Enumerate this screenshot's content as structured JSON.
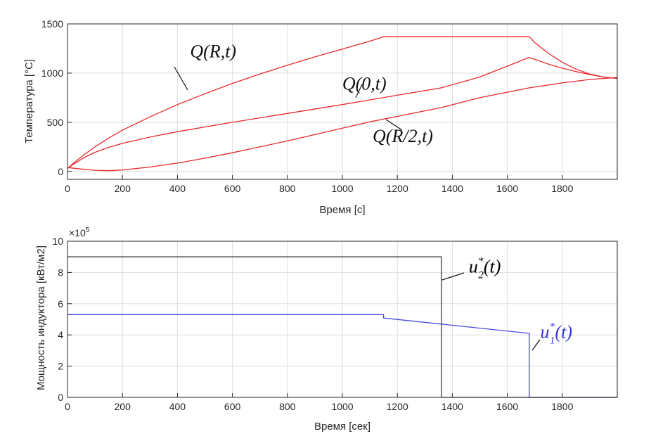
{
  "chart_data": [
    {
      "type": "line",
      "title": "",
      "xlabel": "Время [с]",
      "ylabel": "Температура [°C]",
      "xlim": [
        0,
        2000
      ],
      "ylim": [
        -80,
        1500
      ],
      "xticks": [
        0,
        200,
        400,
        600,
        800,
        1000,
        1200,
        1400,
        1600,
        1800
      ],
      "yticks": [
        0,
        500,
        1000,
        1500
      ],
      "grid": true,
      "series": [
        {
          "color": "#e8282c",
          "points": [
            [
              0,
              30
            ],
            [
              20,
              80
            ],
            [
              60,
              170
            ],
            [
              100,
              250
            ],
            [
              150,
              340
            ],
            [
              200,
              420
            ],
            [
              300,
              555
            ],
            [
              400,
              680
            ],
            [
              500,
              790
            ],
            [
              600,
              895
            ],
            [
              700,
              990
            ],
            [
              800,
              1080
            ],
            [
              900,
              1165
            ],
            [
              1000,
              1245
            ],
            [
              1100,
              1325
            ],
            [
              1150,
              1370
            ],
            [
              1360,
              1370
            ],
            [
              1680,
              1370
            ],
            [
              1700,
              1310
            ],
            [
              1750,
              1200
            ],
            [
              1800,
              1110
            ],
            [
              1850,
              1040
            ],
            [
              1900,
              990
            ],
            [
              1950,
              960
            ],
            [
              2000,
              945
            ]
          ]
        },
        {
          "color": "#e8282c",
          "points": [
            [
              0,
              30
            ],
            [
              20,
              70
            ],
            [
              60,
              140
            ],
            [
              100,
              195
            ],
            [
              150,
              245
            ],
            [
              200,
              285
            ],
            [
              300,
              350
            ],
            [
              400,
              405
            ],
            [
              600,
              500
            ],
            [
              800,
              590
            ],
            [
              1000,
              680
            ],
            [
              1200,
              775
            ],
            [
              1360,
              850
            ],
            [
              1500,
              960
            ],
            [
              1680,
              1160
            ],
            [
              1750,
              1090
            ],
            [
              1800,
              1050
            ],
            [
              1850,
              1015
            ],
            [
              1900,
              985
            ],
            [
              1950,
              960
            ],
            [
              2000,
              945
            ]
          ]
        },
        {
          "color": "#e8282c",
          "points": [
            [
              0,
              40
            ],
            [
              50,
              25
            ],
            [
              100,
              12
            ],
            [
              150,
              8
            ],
            [
              200,
              15
            ],
            [
              300,
              45
            ],
            [
              400,
              85
            ],
            [
              500,
              135
            ],
            [
              600,
              190
            ],
            [
              700,
              250
            ],
            [
              800,
              310
            ],
            [
              900,
              375
            ],
            [
              1000,
              440
            ],
            [
              1100,
              505
            ],
            [
              1200,
              560
            ],
            [
              1360,
              650
            ],
            [
              1500,
              750
            ],
            [
              1680,
              850
            ],
            [
              1800,
              900
            ],
            [
              1900,
              935
            ],
            [
              2000,
              955
            ]
          ]
        }
      ],
      "annotations": [
        {
          "text": "Q(R,t)",
          "x": 530,
          "y": 1160
        },
        {
          "text": "Q(0,t)",
          "x": 1080,
          "y": 830
        },
        {
          "text": "Q(R/2,t)",
          "x": 1220,
          "y": 300
        }
      ]
    },
    {
      "type": "line",
      "title": "",
      "xlabel": "Время [сек]",
      "ylabel": "Мощность индуктора [кВт/м2]",
      "xlim": [
        0,
        2000
      ],
      "ylim": [
        0,
        10
      ],
      "scale_label": "×10",
      "scale_exponent": "5",
      "xticks": [
        0,
        200,
        400,
        600,
        800,
        1000,
        1200,
        1400,
        1600,
        1800
      ],
      "yticks": [
        0,
        2,
        4,
        6,
        8,
        10
      ],
      "grid": true,
      "series": [
        {
          "color": "#3a3a3a",
          "points": [
            [
              0,
              9.0
            ],
            [
              1360,
              9.0
            ],
            [
              1360,
              0.0
            ],
            [
              2000,
              0.0
            ]
          ]
        },
        {
          "color": "#4a4ae0",
          "points": [
            [
              0,
              5.3
            ],
            [
              1150,
              5.3
            ],
            [
              1150,
              5.08
            ],
            [
              1680,
              4.1
            ],
            [
              1680,
              0.0
            ],
            [
              2000,
              0.0
            ]
          ]
        }
      ],
      "annotations": [
        {
          "base": "u",
          "sub": "2",
          "sup": "*",
          "arg": "(t)",
          "x": 1460,
          "y": 8.0,
          "color": "#000000"
        },
        {
          "base": "u",
          "sub": "1",
          "sup": "*",
          "arg": "(t)",
          "x": 1720,
          "y": 3.8,
          "color": "#3535d8"
        }
      ]
    }
  ]
}
